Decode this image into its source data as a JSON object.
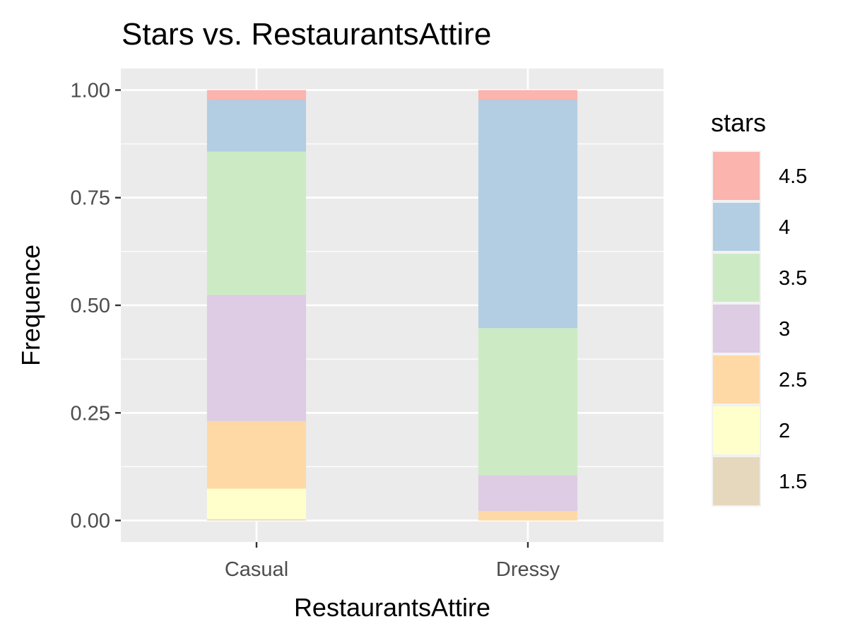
{
  "chart_data": {
    "type": "bar",
    "stacked": true,
    "title": "Stars vs. RestaurantsAttire",
    "xlabel": "RestaurantsAttire",
    "ylabel": "Frequence",
    "categories": [
      "Casual",
      "Dressy"
    ],
    "ylim": [
      -0.05,
      1.05
    ],
    "yticks": [
      0.0,
      0.25,
      0.5,
      0.75,
      1.0
    ],
    "ytick_labels": [
      "0.00",
      "0.25",
      "0.50",
      "0.75",
      "1.00"
    ],
    "grid": true,
    "legend": {
      "title": "stars",
      "position": "right"
    },
    "series": [
      {
        "name": "1.5",
        "color": "#E5D8BD",
        "values": [
          0.003,
          0.0
        ]
      },
      {
        "name": "2",
        "color": "#FFFFCC",
        "values": [
          0.071,
          0.0
        ]
      },
      {
        "name": "2.5",
        "color": "#FED9A6",
        "values": [
          0.157,
          0.022
        ]
      },
      {
        "name": "3",
        "color": "#DECBE4",
        "values": [
          0.293,
          0.083
        ]
      },
      {
        "name": "3.5",
        "color": "#CCEBC5",
        "values": [
          0.333,
          0.342
        ]
      },
      {
        "name": "4",
        "color": "#B3CDE3",
        "values": [
          0.12,
          0.53
        ]
      },
      {
        "name": "4.5",
        "color": "#FBB4AE",
        "values": [
          0.023,
          0.023
        ]
      }
    ]
  }
}
